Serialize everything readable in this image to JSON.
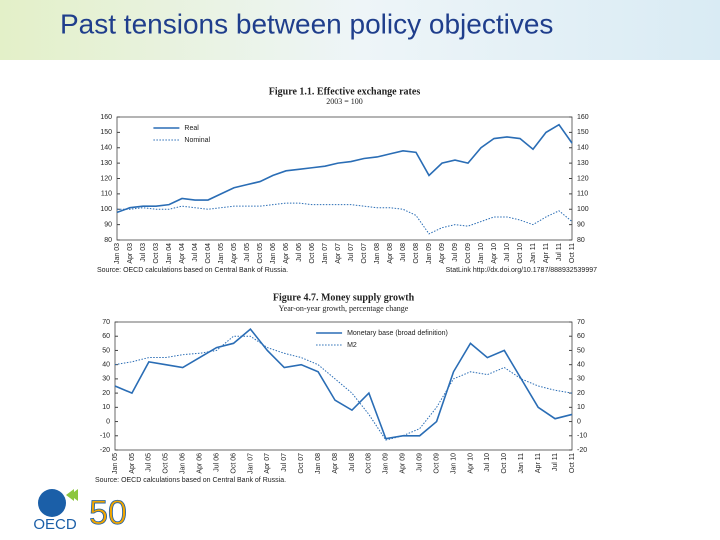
{
  "slide_title": "Past tensions between policy objectives",
  "logo": {
    "name": "OECD",
    "anniversary": "50"
  },
  "chart_data": [
    {
      "type": "line",
      "title": "Figure 1.1. Effective exchange rates",
      "subtitle": "2003 = 100",
      "source": "Source: OECD calculations based on Central Bank of Russia.",
      "statlink": "StatLink http://dx.doi.org/10.1787/888932539997",
      "legend": "upper left",
      "categories": [
        "Jan 03",
        "Apr 03",
        "Jul 03",
        "Oct 03",
        "Jan 04",
        "Apr 04",
        "Jul 04",
        "Oct 04",
        "Jan 05",
        "Apr 05",
        "Jul 05",
        "Oct 05",
        "Jan 06",
        "Apr 06",
        "Jul 06",
        "Oct 06",
        "Jan 07",
        "Apr 07",
        "Jul 07",
        "Oct 07",
        "Jan 08",
        "Apr 08",
        "Jul 08",
        "Oct 08",
        "Jan 09",
        "Apr 09",
        "Jul 09",
        "Oct 09",
        "Jan 10",
        "Apr 10",
        "Jul 10",
        "Oct 10",
        "Jan 11",
        "Apr 11",
        "Jul 11",
        "Oct 11"
      ],
      "series": [
        {
          "name": "Real",
          "color": "#2a6db5",
          "style": "solid",
          "values": [
            98,
            101,
            102,
            102,
            103,
            107,
            106,
            106,
            110,
            114,
            116,
            118,
            122,
            125,
            126,
            127,
            128,
            130,
            131,
            133,
            134,
            136,
            138,
            137,
            122,
            130,
            132,
            130,
            140,
            146,
            147,
            146,
            139,
            150,
            155,
            143
          ]
        },
        {
          "name": "Nominal",
          "color": "#2a6db5",
          "style": "dotted",
          "values": [
            100,
            100,
            101,
            100,
            100,
            102,
            101,
            100,
            101,
            102,
            102,
            102,
            103,
            104,
            104,
            103,
            103,
            103,
            103,
            102,
            101,
            101,
            100,
            96,
            84,
            88,
            90,
            89,
            92,
            95,
            95,
            93,
            90,
            95,
            99,
            92
          ]
        }
      ],
      "ylim": [
        80,
        160
      ],
      "yticks": [
        80,
        90,
        100,
        110,
        120,
        130,
        140,
        150,
        160
      ]
    },
    {
      "type": "line",
      "title": "Figure 4.7. Money supply growth",
      "subtitle": "Year-on-year growth, percentage change",
      "source": "Source: OECD calculations based on Central Bank of Russia.",
      "legend": "upper center",
      "categories": [
        "Jan 05",
        "Apr 05",
        "Jul 05",
        "Oct 05",
        "Jan 06",
        "Apr 06",
        "Jul 06",
        "Oct 06",
        "Jan 07",
        "Apr 07",
        "Jul 07",
        "Oct 07",
        "Jan 08",
        "Apr 08",
        "Jul 08",
        "Oct 08",
        "Jan 09",
        "Apr 09",
        "Jul 09",
        "Oct 09",
        "Jan 10",
        "Apr 10",
        "Jul 10",
        "Oct 10",
        "Jan 11",
        "Apr 11",
        "Jul 11",
        "Oct 11"
      ],
      "series": [
        {
          "name": "Monetary base (broad definition)",
          "color": "#2a6db5",
          "style": "solid",
          "values": [
            25,
            20,
            42,
            40,
            38,
            45,
            52,
            55,
            65,
            50,
            38,
            40,
            35,
            15,
            8,
            20,
            -12,
            -10,
            -10,
            0,
            35,
            55,
            45,
            50,
            30,
            10,
            2,
            5
          ]
        },
        {
          "name": "M2",
          "color": "#2a6db5",
          "style": "dotted",
          "values": [
            40,
            42,
            45,
            45,
            47,
            48,
            50,
            60,
            60,
            52,
            48,
            45,
            40,
            30,
            20,
            5,
            -13,
            -10,
            -5,
            10,
            30,
            35,
            33,
            38,
            30,
            25,
            22,
            20
          ]
        }
      ],
      "ylim": [
        -20,
        70
      ],
      "yticks": [
        -20,
        -10,
        0,
        10,
        20,
        30,
        40,
        50,
        60,
        70
      ]
    }
  ]
}
